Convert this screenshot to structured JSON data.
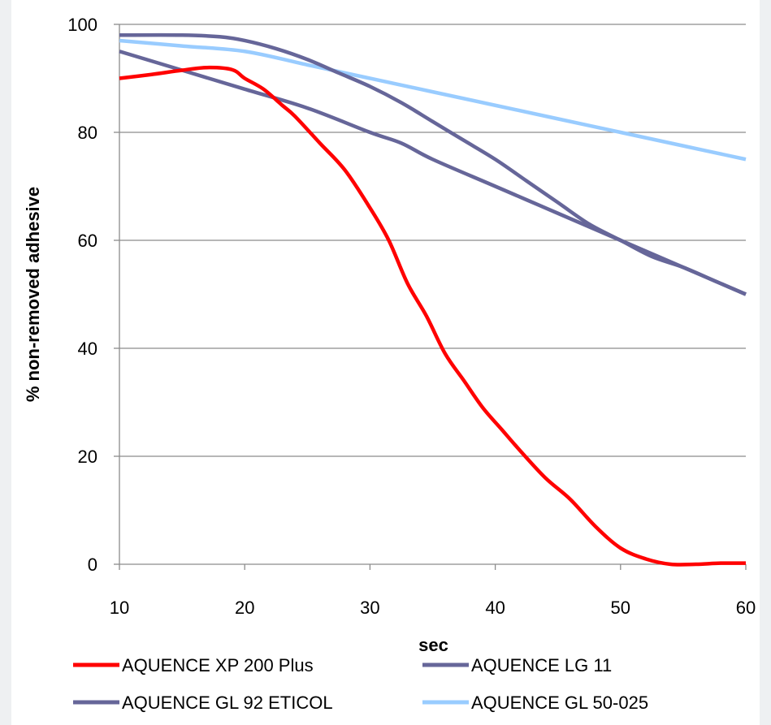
{
  "chart_data": {
    "type": "line",
    "title": "",
    "xlabel": "sec",
    "ylabel": "% non-removed adhesive",
    "xlim": [
      10,
      60
    ],
    "ylim": [
      0,
      100
    ],
    "xticks": [
      10,
      20,
      30,
      40,
      50,
      60
    ],
    "yticks": [
      0,
      20,
      40,
      60,
      80,
      100
    ],
    "grid": "horizontal",
    "legend_position": "bottom",
    "series": [
      {
        "name": "AQUENCE XP 200 Plus",
        "color": "#ff0000",
        "x": [
          10,
          12.5,
          15,
          17,
          19,
          20,
          21.5,
          23,
          24,
          26,
          28,
          30,
          31.5,
          33,
          34.5,
          36,
          37.5,
          39,
          40.5,
          42,
          44,
          46,
          48,
          50,
          52,
          54,
          56,
          58,
          60
        ],
        "y": [
          90,
          90.7,
          91.5,
          92,
          91.6,
          90,
          88,
          85,
          83,
          78,
          73,
          66,
          60,
          52,
          46,
          39,
          34,
          29,
          25,
          21,
          16,
          12,
          7,
          3,
          1,
          0,
          0,
          0.2,
          0.2
        ]
      },
      {
        "name": "AQUENCE LG 11",
        "color": "#666699",
        "x": [
          10,
          15,
          18,
          20,
          22.5,
          25,
          27.5,
          30,
          32.5,
          35,
          37.5,
          40,
          42.5,
          45,
          47.5,
          50,
          52.5,
          55,
          57.5,
          60
        ],
        "y": [
          98,
          98,
          97.7,
          97,
          95.5,
          93.5,
          91,
          88.5,
          85.5,
          82,
          78.5,
          75,
          71,
          67,
          63,
          60,
          57,
          55,
          52.5,
          50
        ]
      },
      {
        "name": "AQUENCE GL 92 ETICOL",
        "color": "#666699",
        "x": [
          10,
          15,
          20,
          25,
          30,
          32.5,
          35,
          40,
          45,
          50,
          55,
          60
        ],
        "y": [
          95,
          91.5,
          88,
          84.5,
          80,
          78,
          75,
          70,
          65,
          60,
          55,
          50
        ]
      },
      {
        "name": "AQUENCE GL 50-025",
        "color": "#99ccff",
        "x": [
          10,
          15,
          20,
          25,
          30,
          35,
          40,
          45,
          50,
          55,
          60
        ],
        "y": [
          97,
          96,
          95,
          92.5,
          90,
          87.5,
          85,
          82.5,
          80,
          77.5,
          75
        ]
      }
    ]
  }
}
